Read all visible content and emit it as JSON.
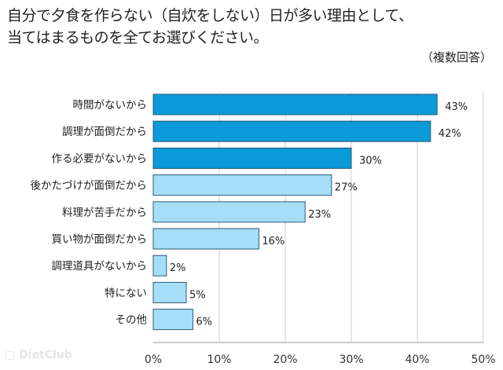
{
  "chart_data": {
    "type": "bar",
    "orientation": "horizontal",
    "title_lines": [
      "自分で夕食を作らない（自炊をしない）日が多い理由として、",
      "当てはまるものを全てお選びください。"
    ],
    "subtitle": "（複数回答）",
    "categories": [
      "時間がないから",
      "調理が面倒だから",
      "作る必要がないから",
      "後かたづけが面倒だから",
      "料理が苦手だから",
      "買い物が面倒だから",
      "調理道具がないから",
      "特にない",
      "その他"
    ],
    "values": [
      43,
      42,
      30,
      27,
      23,
      16,
      2,
      5,
      6
    ],
    "value_labels": [
      "43%",
      "42%",
      "30%",
      "27%",
      "23%",
      "16%",
      "2%",
      "5%",
      "6%"
    ],
    "highlighted_count": 3,
    "xlim": [
      0,
      50
    ],
    "x_ticks": [
      "0%",
      "10%",
      "20%",
      "30%",
      "40%",
      "50%"
    ],
    "grid": true,
    "colors": {
      "highlight": "#0a9ad8",
      "normal": "#a6def7",
      "border": "#2a5a78"
    }
  },
  "watermark": "DietClub"
}
